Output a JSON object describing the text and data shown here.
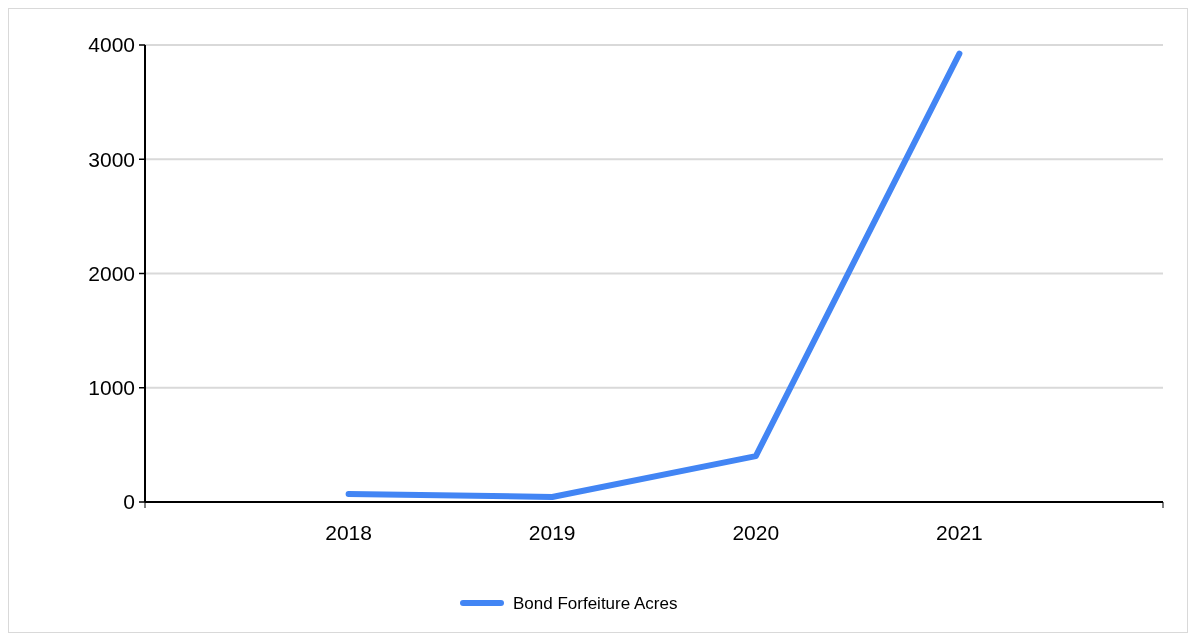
{
  "chart_data": {
    "type": "line",
    "x": [
      2018,
      2019,
      2020,
      2021
    ],
    "series": [
      {
        "name": "Bond Forfeiture Acres",
        "color": "#4285f4",
        "values": [
          70,
          44,
          402,
          3925
        ]
      }
    ],
    "xlim": [
      2017,
      2022
    ],
    "xticks": [
      2018,
      2019,
      2020,
      2021
    ],
    "ylim": [
      0,
      4000
    ],
    "yticks": [
      0,
      1000,
      2000,
      3000,
      4000
    ],
    "grid": "y",
    "legend": "bottom",
    "marker": "none",
    "line_style": "solid"
  }
}
